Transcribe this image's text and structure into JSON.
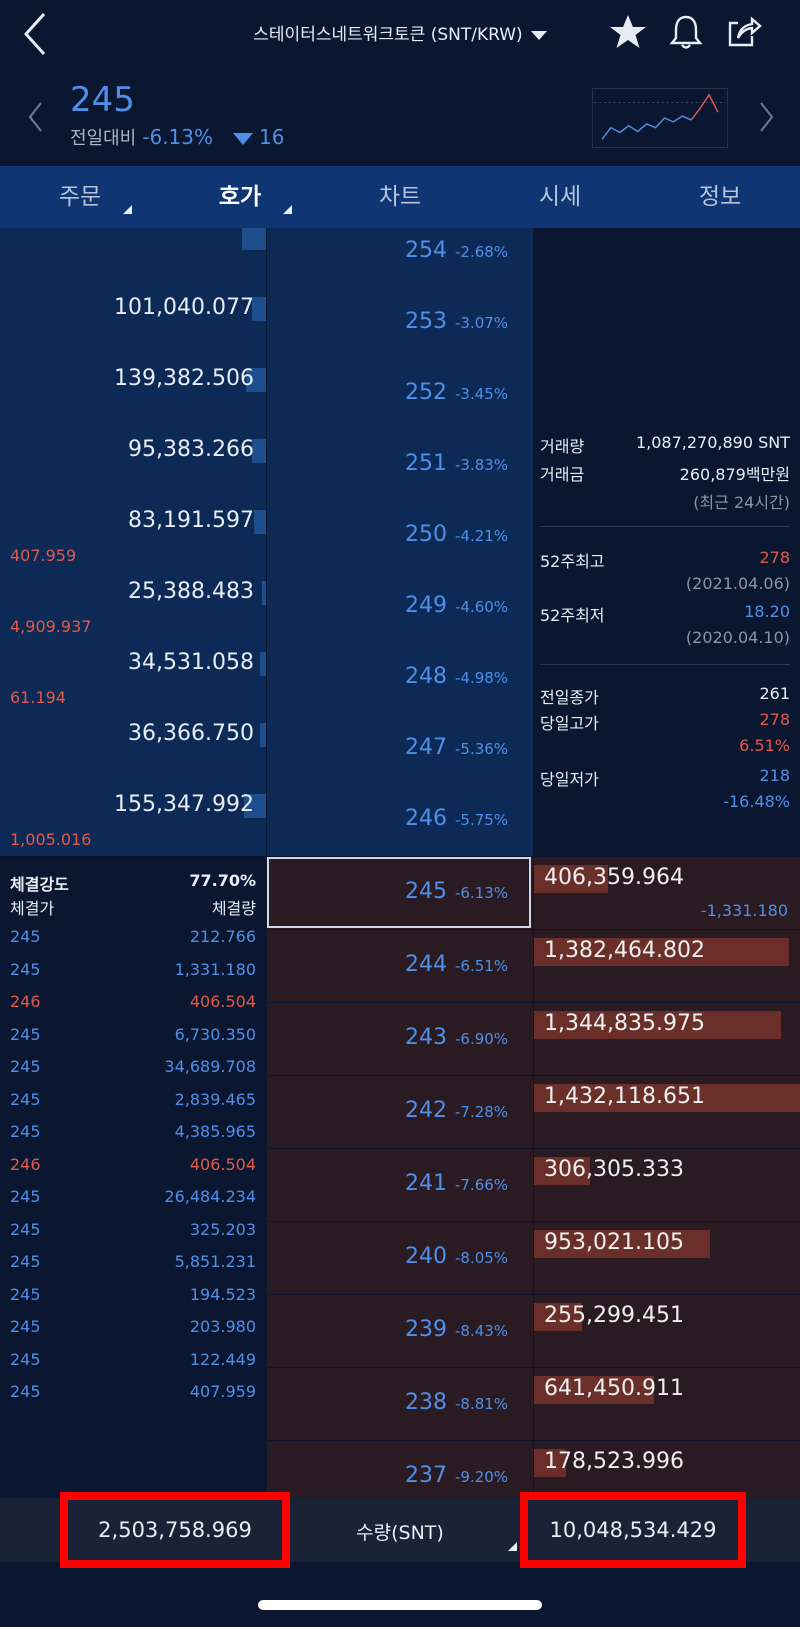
{
  "header": {
    "title": "스테이터스네트워크토큰 (SNT/KRW)"
  },
  "price_bar": {
    "price": "245",
    "change_label": "전일대비",
    "change_pct": "-6.13%",
    "change_value": "16"
  },
  "mini_chart": {
    "points": [
      52,
      40,
      45,
      38,
      44,
      36,
      40,
      30,
      34,
      28,
      32,
      20,
      6,
      24
    ]
  },
  "tabs": [
    {
      "label": "주문"
    },
    {
      "label": "호가"
    },
    {
      "label": "차트"
    },
    {
      "label": "시세"
    },
    {
      "label": "정보"
    }
  ],
  "asks": [
    {
      "price": "254",
      "pct": "-2.68%",
      "qty": "",
      "fill": "",
      "bar": 0.12
    },
    {
      "price": "253",
      "pct": "-3.07%",
      "qty": "101,040.077",
      "fill": "",
      "bar": 0.07
    },
    {
      "price": "252",
      "pct": "-3.45%",
      "qty": "139,382.506",
      "fill": "",
      "bar": 0.1
    },
    {
      "price": "251",
      "pct": "-3.83%",
      "qty": "95,383.266",
      "fill": "",
      "bar": 0.07
    },
    {
      "price": "250",
      "pct": "-4.21%",
      "qty": "83,191.597",
      "fill": "407.959",
      "bar": 0.06
    },
    {
      "price": "249",
      "pct": "-4.60%",
      "qty": "25,388.483",
      "fill": "4,909.937",
      "bar": 0.02
    },
    {
      "price": "248",
      "pct": "-4.98%",
      "qty": "34,531.058",
      "fill": "61.194",
      "bar": 0.03
    },
    {
      "price": "247",
      "pct": "-5.36%",
      "qty": "36,366.750",
      "fill": "",
      "bar": 0.03
    },
    {
      "price": "246",
      "pct": "-5.75%",
      "qty": "155,347.992",
      "fill": "1,005.016",
      "bar": 0.11
    }
  ],
  "bids": [
    {
      "price": "245",
      "pct": "-6.13%",
      "qty": "406,359.964",
      "sub": "-1,331.180",
      "bar": 0.28
    },
    {
      "price": "244",
      "pct": "-6.51%",
      "qty": "1,382,464.802",
      "sub": "",
      "bar": 0.96
    },
    {
      "price": "243",
      "pct": "-6.90%",
      "qty": "1,344,835.975",
      "sub": "",
      "bar": 0.93
    },
    {
      "price": "242",
      "pct": "-7.28%",
      "qty": "1,432,118.651",
      "sub": "",
      "bar": 1.0
    },
    {
      "price": "241",
      "pct": "-7.66%",
      "qty": "306,305.333",
      "sub": "",
      "bar": 0.21
    },
    {
      "price": "240",
      "pct": "-8.05%",
      "qty": "953,021.105",
      "sub": "",
      "bar": 0.66
    },
    {
      "price": "239",
      "pct": "-8.43%",
      "qty": "255,299.451",
      "sub": "",
      "bar": 0.18
    },
    {
      "price": "238",
      "pct": "-8.81%",
      "qty": "641,450.911",
      "sub": "",
      "bar": 0.45
    },
    {
      "price": "237",
      "pct": "-9.20%",
      "qty": "178,523.996",
      "sub": "",
      "bar": 0.12
    }
  ],
  "info": {
    "volume_label": "거래량",
    "volume_value": "1,087,270,890 SNT",
    "amount_label": "거래금",
    "amount_value": "260,879백만원",
    "period_note": "(최근 24시간)",
    "high52_label": "52주최고",
    "high52_value": "278",
    "high52_date": "(2021.04.06)",
    "low52_label": "52주최저",
    "low52_value": "18.20",
    "low52_date": "(2020.04.10)",
    "prev_close_label": "전일종가",
    "prev_close_value": "261",
    "day_high_label": "당일고가",
    "day_high_value": "278",
    "day_high_pct": "6.51%",
    "day_low_label": "당일저가",
    "day_low_value": "218",
    "day_low_pct": "-16.48%"
  },
  "trades": {
    "strength_label": "체결강도",
    "strength_value": "77.70%",
    "price_header": "체결가",
    "qty_header": "체결량",
    "rows": [
      {
        "p": "245",
        "q": "212.766",
        "up": false
      },
      {
        "p": "245",
        "q": "1,331.180",
        "up": false
      },
      {
        "p": "246",
        "q": "406.504",
        "up": true
      },
      {
        "p": "245",
        "q": "6,730.350",
        "up": false
      },
      {
        "p": "245",
        "q": "34,689.708",
        "up": false
      },
      {
        "p": "245",
        "q": "2,839.465",
        "up": false
      },
      {
        "p": "245",
        "q": "4,385.965",
        "up": false
      },
      {
        "p": "246",
        "q": "406.504",
        "up": true
      },
      {
        "p": "245",
        "q": "26,484.234",
        "up": false
      },
      {
        "p": "245",
        "q": "325.203",
        "up": false
      },
      {
        "p": "245",
        "q": "5,851.231",
        "up": false
      },
      {
        "p": "245",
        "q": "194.523",
        "up": false
      },
      {
        "p": "245",
        "q": "203.980",
        "up": false
      },
      {
        "p": "245",
        "q": "122.449",
        "up": false
      },
      {
        "p": "245",
        "q": "407.959",
        "up": false
      }
    ]
  },
  "footer": {
    "ask_total": "2,503,758.969",
    "unit_label": "수량(SNT)",
    "bid_total": "10,048,534.429"
  }
}
